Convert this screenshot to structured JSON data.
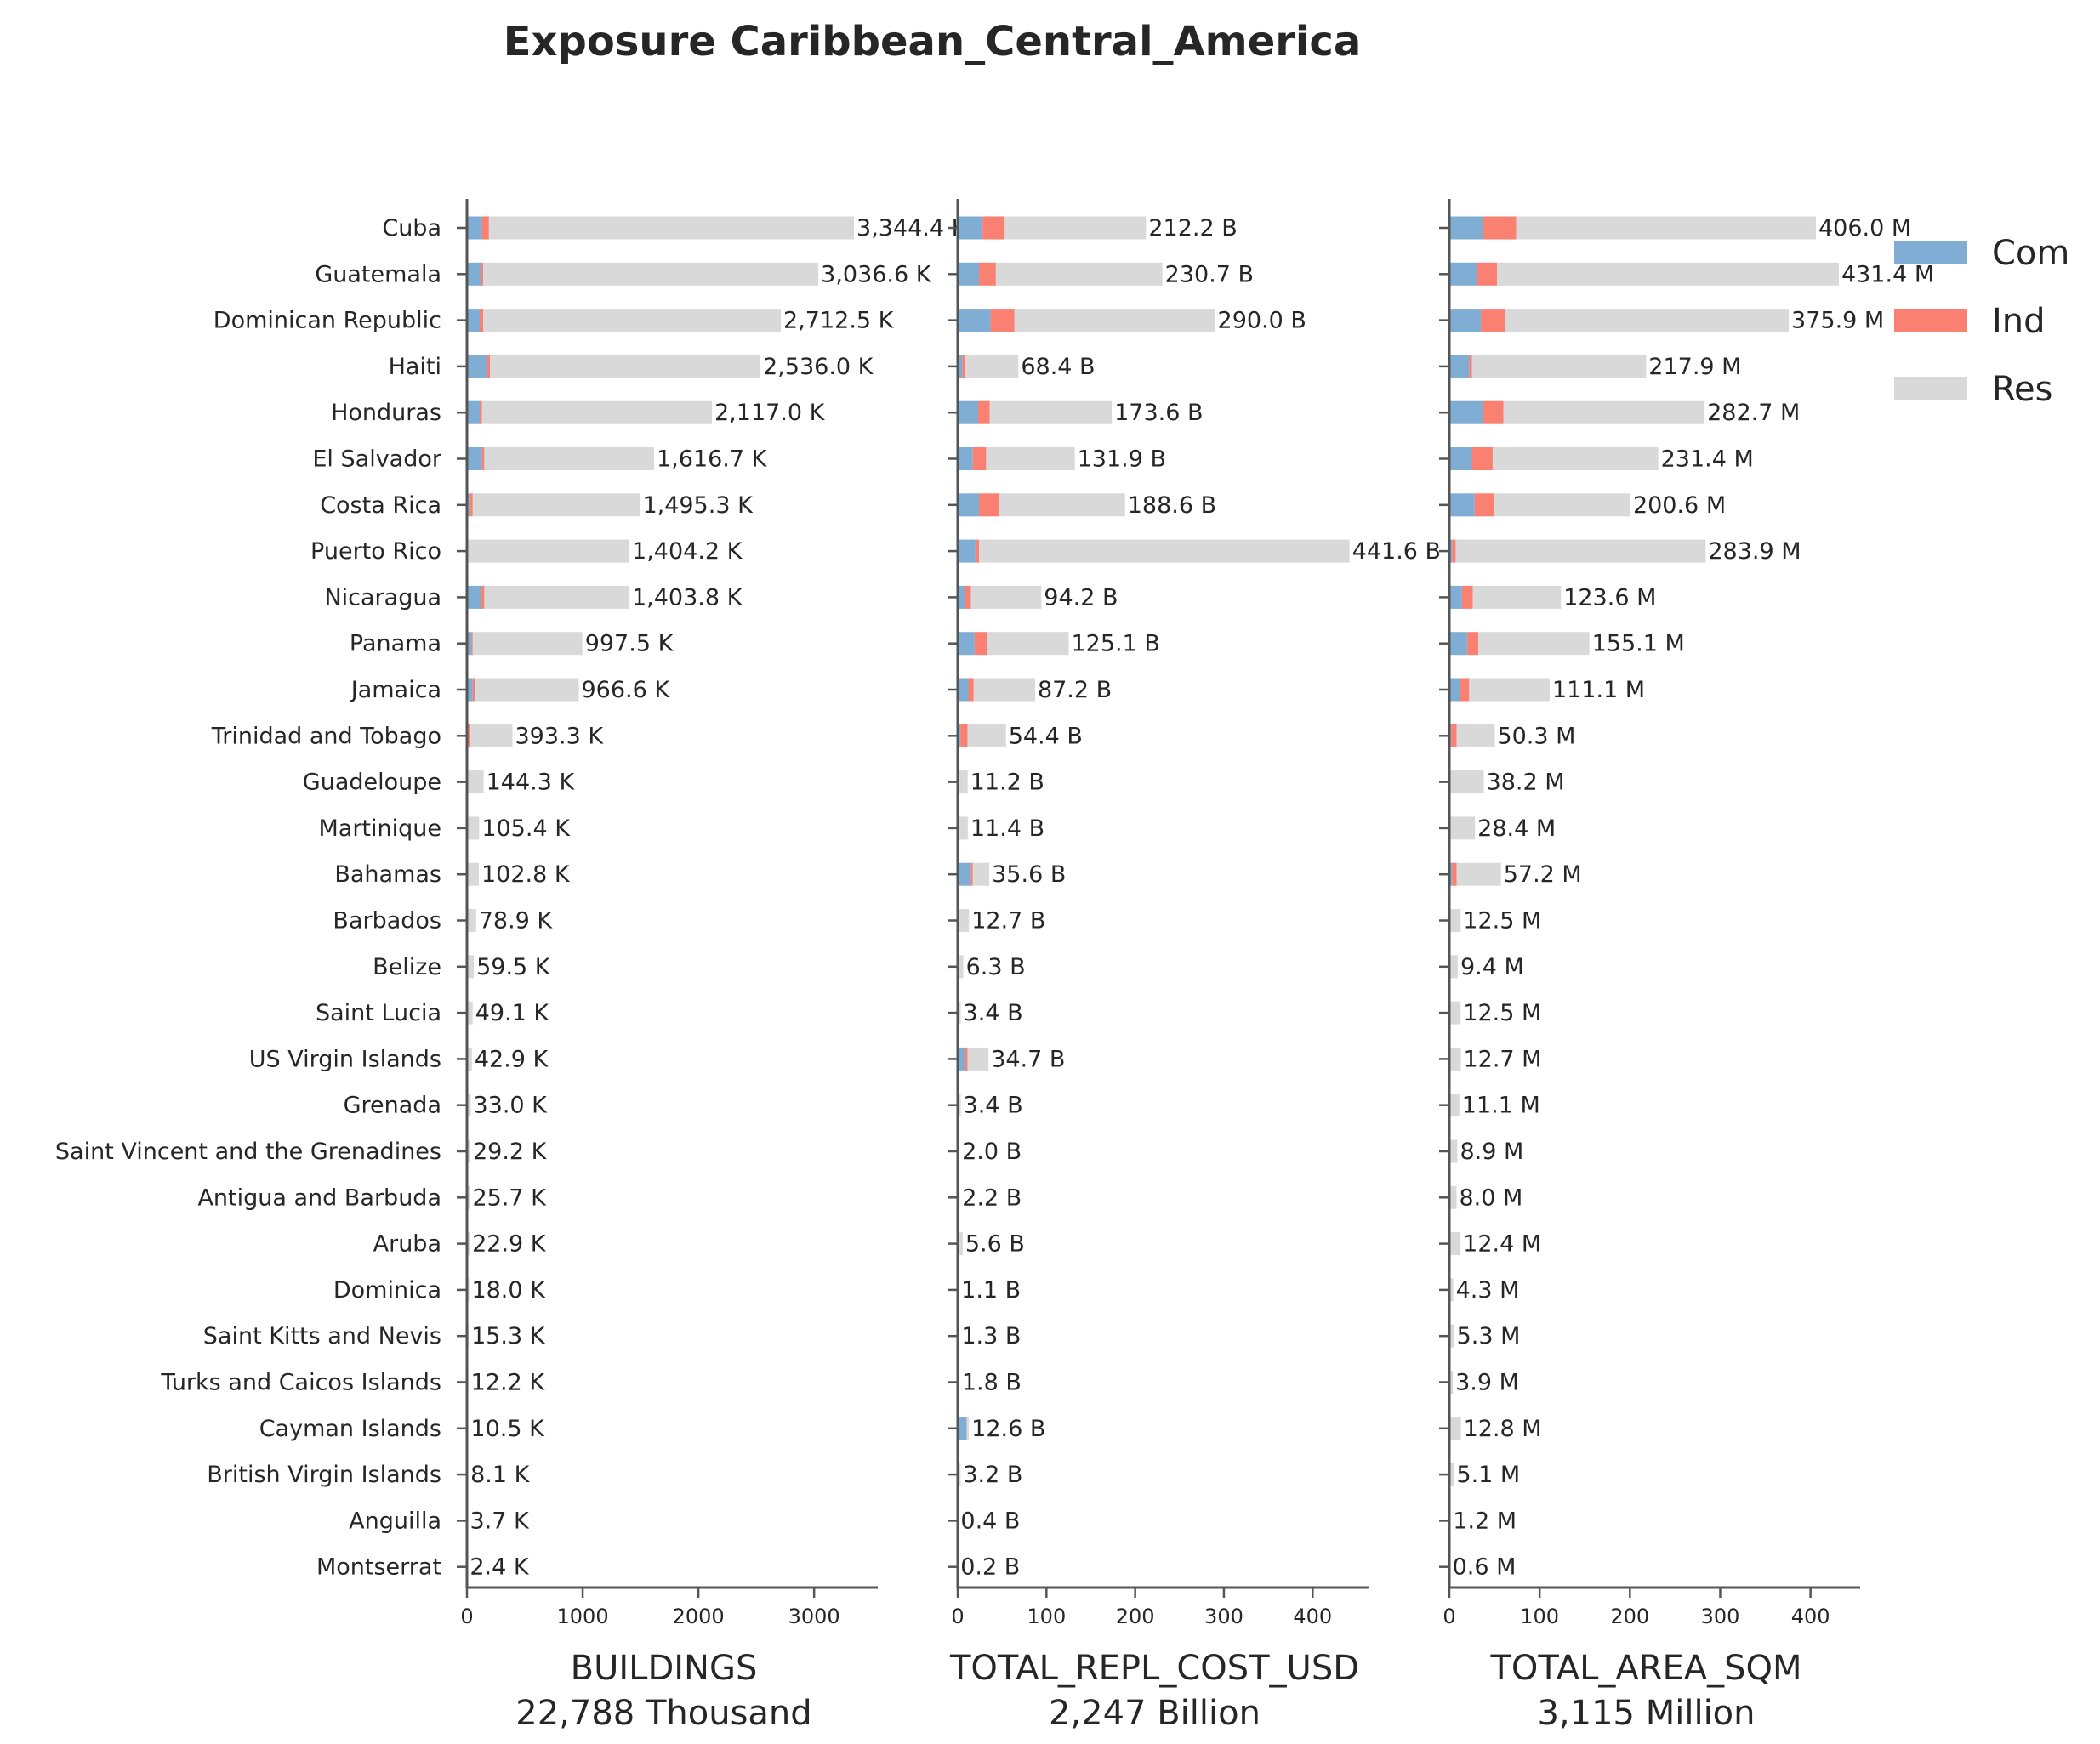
{
  "chart_data": {
    "type": "bar",
    "orientation": "horizontal",
    "stacked": true,
    "title": "Exposure Caribbean_Central_America",
    "colors": {
      "Com": "#7fadd3",
      "Ind": "#fa8072",
      "Res": "#d9d9d9"
    },
    "legend": {
      "position": "top-right",
      "entries": [
        "Com",
        "Ind",
        "Res"
      ]
    },
    "categories": [
      "Cuba",
      "Guatemala",
      "Dominican Republic",
      "Haiti",
      "Honduras",
      "El Salvador",
      "Costa Rica",
      "Puerto Rico",
      "Nicaragua",
      "Panama",
      "Jamaica",
      "Trinidad and Tobago",
      "Guadeloupe",
      "Martinique",
      "Bahamas",
      "Barbados",
      "Belize",
      "Saint Lucia",
      "US Virgin Islands",
      "Grenada",
      "Saint Vincent and the Grenadines",
      "Antigua and Barbuda",
      "Aruba",
      "Dominica",
      "Saint Kitts and Nevis",
      "Turks and Caicos Islands",
      "Cayman Islands",
      "British Virgin Islands",
      "Anguilla",
      "Montserrat"
    ],
    "panels": [
      {
        "xlabel": "BUILDINGS",
        "total_label": "22,788 Thousand",
        "xlim": [
          0,
          3550
        ],
        "xticks": [
          0,
          1000,
          2000,
          3000
        ],
        "series": [
          {
            "name": "Com",
            "values": [
              130,
              120,
              110,
              170,
              110,
              130,
              20,
              0,
              120,
              40,
              50,
              10,
              0,
              0,
              0,
              0,
              0,
              0,
              0,
              0,
              0,
              0,
              0,
              0,
              0,
              0,
              0,
              0,
              0,
              0
            ]
          },
          {
            "name": "Ind",
            "values": [
              60,
              20,
              30,
              30,
              20,
              20,
              30,
              0,
              30,
              10,
              20,
              20,
              0,
              0,
              0,
              0,
              0,
              0,
              0,
              0,
              0,
              0,
              0,
              0,
              0,
              0,
              0,
              0,
              0,
              0
            ]
          },
          {
            "name": "Res",
            "values": [
              3154.4,
              2896.6,
              2572.5,
              2336.0,
              1987.0,
              1466.7,
              1445.3,
              1404.2,
              1253.8,
              947.5,
              896.6,
              363.3,
              144.3,
              105.4,
              102.8,
              78.9,
              59.5,
              49.1,
              42.9,
              33.0,
              29.2,
              25.7,
              22.9,
              18.0,
              15.3,
              12.2,
              10.5,
              8.1,
              3.7,
              2.4
            ]
          }
        ],
        "labels": [
          "3,344.4 K",
          "3,036.6 K",
          "2,712.5 K",
          "2,536.0 K",
          "2,117.0 K",
          "1,616.7 K",
          "1,495.3 K",
          "1,404.2 K",
          "1,403.8 K",
          "997.5 K",
          "966.6 K",
          "393.3 K",
          "144.3 K",
          "105.4 K",
          "102.8 K",
          "78.9 K",
          "59.5 K",
          "49.1 K",
          "42.9 K",
          "33.0 K",
          "29.2 K",
          "25.7 K",
          "22.9 K",
          "18.0 K",
          "15.3 K",
          "12.2 K",
          "10.5 K",
          "8.1 K",
          "3.7 K",
          "2.4 K"
        ]
      },
      {
        "xlabel": "TOTAL_REPL_COST_USD",
        "total_label": "2,247 Billion",
        "xlim": [
          0,
          463
        ],
        "xticks": [
          0,
          100,
          200,
          300,
          400
        ],
        "series": [
          {
            "name": "Com",
            "values": [
              28,
              24,
              37,
              5,
              23,
              17,
              24,
              20,
              8,
              19,
              12,
              3,
              0,
              0,
              15,
              0,
              0,
              0,
              8,
              0,
              0,
              0,
              0,
              0,
              0,
              0,
              10,
              0,
              0,
              0
            ]
          },
          {
            "name": "Ind",
            "values": [
              25,
              19,
              27,
              3,
              13,
              15,
              22,
              4,
              7,
              14,
              6,
              8,
              0,
              0,
              2,
              0,
              0,
              0,
              3,
              0,
              0,
              0,
              0,
              0,
              0,
              0,
              0,
              0,
              0,
              0
            ]
          },
          {
            "name": "Res",
            "values": [
              159.2,
              187.7,
              226.0,
              60.4,
              137.6,
              99.9,
              142.6,
              417.6,
              79.2,
              92.1,
              69.2,
              43.4,
              11.2,
              11.4,
              18.6,
              12.7,
              6.3,
              3.4,
              23.7,
              3.4,
              2.0,
              2.2,
              5.6,
              1.1,
              1.3,
              1.8,
              2.6,
              3.2,
              0.4,
              0.2
            ]
          }
        ],
        "labels": [
          "212.2 B",
          "230.7 B",
          "290.0 B",
          "68.4 B",
          "173.6 B",
          "131.9 B",
          "188.6 B",
          "441.6 B",
          "94.2 B",
          "125.1 B",
          "87.2 B",
          "54.4 B",
          "11.2 B",
          "11.4 B",
          "35.6 B",
          "12.7 B",
          "6.3 B",
          "3.4 B",
          "34.7 B",
          "3.4 B",
          "2.0 B",
          "2.2 B",
          "5.6 B",
          "1.1 B",
          "1.3 B",
          "1.8 B",
          "12.6 B",
          "3.2 B",
          "0.4 B",
          "0.2 B"
        ]
      },
      {
        "xlabel": "TOTAL_AREA_SQM",
        "total_label": "3,115 Million",
        "xlim": [
          0,
          455
        ],
        "xticks": [
          0,
          100,
          200,
          300,
          400
        ],
        "series": [
          {
            "name": "Com",
            "values": [
              37,
              31,
              35,
              22,
              37,
              25,
              28,
              3,
              14,
              20,
              12,
              2,
              0,
              0,
              3,
              0,
              0,
              0,
              0,
              0,
              0,
              0,
              0,
              0,
              0,
              0,
              0,
              0,
              0,
              0
            ]
          },
          {
            "name": "Ind",
            "values": [
              37,
              22,
              27,
              3,
              23,
              23,
              21,
              4,
              12,
              12,
              10,
              6,
              0,
              0,
              5,
              0,
              0,
              0,
              0,
              0,
              0,
              0,
              0,
              0,
              0,
              0,
              0,
              0,
              0,
              0
            ]
          },
          {
            "name": "Res",
            "values": [
              332.0,
              378.4,
              313.9,
              192.9,
              222.7,
              183.4,
              151.6,
              276.9,
              97.6,
              123.1,
              89.1,
              42.3,
              38.2,
              28.4,
              49.2,
              12.5,
              9.4,
              12.5,
              12.7,
              11.1,
              8.9,
              8.0,
              12.4,
              4.3,
              5.3,
              3.9,
              12.8,
              5.1,
              1.2,
              0.6
            ]
          }
        ],
        "labels": [
          "406.0 M",
          "431.4 M",
          "375.9 M",
          "217.9 M",
          "282.7 M",
          "231.4 M",
          "200.6 M",
          "283.9 M",
          "123.6 M",
          "155.1 M",
          "111.1 M",
          "50.3 M",
          "38.2 M",
          "28.4 M",
          "57.2 M",
          "12.5 M",
          "9.4 M",
          "12.5 M",
          "12.7 M",
          "11.1 M",
          "8.9 M",
          "8.0 M",
          "12.4 M",
          "4.3 M",
          "5.3 M",
          "3.9 M",
          "12.8 M",
          "5.1 M",
          "1.2 M",
          "0.6 M"
        ]
      }
    ]
  }
}
